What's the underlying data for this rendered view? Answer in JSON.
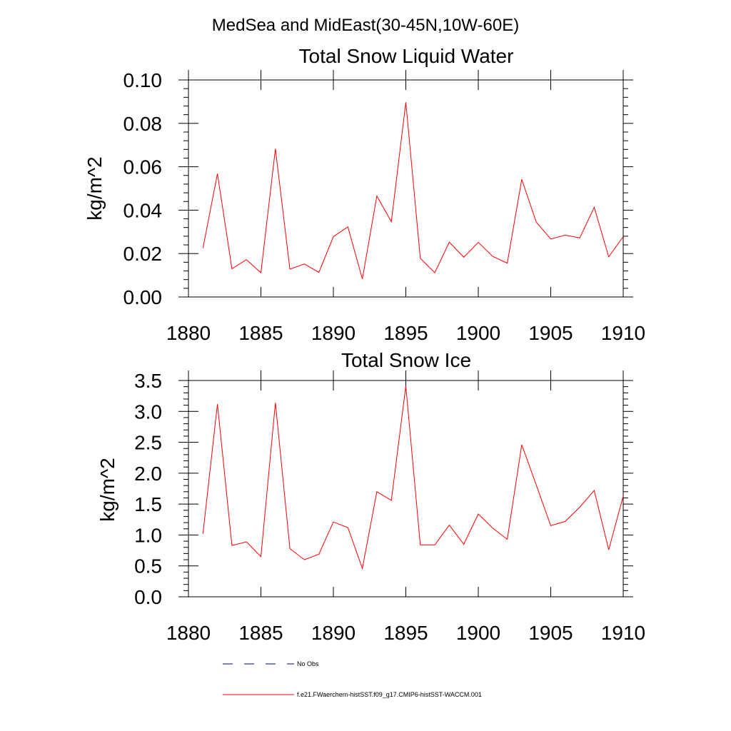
{
  "figure": {
    "suptitle": "MedSea and MidEast(30-45N,10W-60E)"
  },
  "legend": {
    "items": [
      {
        "label": "No Obs",
        "color": "#00008b",
        "style": "dashed"
      },
      {
        "label": "f.e21.FWaerchem-histSST.f09_g17.CMIP6-histSST-WACCM.001",
        "color": "#ff0000",
        "style": "solid"
      }
    ]
  },
  "chart_data": [
    {
      "type": "line",
      "title": "Total Snow Liquid Water",
      "xlabel": "",
      "ylabel": "kg/m^2",
      "xlim": [
        1880,
        1910
      ],
      "ylim": [
        0,
        0.1
      ],
      "xticks": [
        "1880",
        "1885",
        "1890",
        "1895",
        "1900",
        "1905",
        "1910"
      ],
      "yticks": [
        "0.00",
        "0.02",
        "0.04",
        "0.06",
        "0.08",
        "0.10"
      ],
      "grid": false,
      "series": [
        {
          "name": "f.e21.FWaerchem-histSST.f09_g17.CMIP6-histSST-WACCM.001",
          "color": "#ff0000",
          "x": [
            1881,
            1882,
            1883,
            1884,
            1885,
            1886,
            1887,
            1888,
            1889,
            1890,
            1891,
            1892,
            1893,
            1894,
            1895,
            1896,
            1897,
            1898,
            1899,
            1900,
            1901,
            1902,
            1903,
            1904,
            1905,
            1906,
            1907,
            1908,
            1909,
            1910
          ],
          "y": [
            0.0225,
            0.0568,
            0.013,
            0.0172,
            0.0112,
            0.0683,
            0.0128,
            0.0152,
            0.0113,
            0.0278,
            0.0323,
            0.0083,
            0.0465,
            0.0347,
            0.0897,
            0.0178,
            0.0112,
            0.0253,
            0.0183,
            0.0252,
            0.0187,
            0.0156,
            0.0542,
            0.0345,
            0.0267,
            0.0285,
            0.0272,
            0.0413,
            0.0185,
            0.0278
          ]
        }
      ]
    },
    {
      "type": "line",
      "title": "Total Snow Ice",
      "xlabel": "",
      "ylabel": "kg/m^2",
      "xlim": [
        1880,
        1910
      ],
      "ylim": [
        0,
        3.5
      ],
      "xticks": [
        "1880",
        "1885",
        "1890",
        "1895",
        "1900",
        "1905",
        "1910"
      ],
      "yticks": [
        "0.0",
        "0.5",
        "1.0",
        "1.5",
        "2.0",
        "2.5",
        "3.0",
        "3.5"
      ],
      "grid": false,
      "series": [
        {
          "name": "f.e21.FWaerchem-histSST.f09_g17.CMIP6-histSST-WACCM.001",
          "color": "#ff0000",
          "x": [
            1881,
            1882,
            1883,
            1884,
            1885,
            1886,
            1887,
            1888,
            1889,
            1890,
            1891,
            1892,
            1893,
            1894,
            1895,
            1896,
            1897,
            1898,
            1899,
            1900,
            1901,
            1902,
            1903,
            1904,
            1905,
            1906,
            1907,
            1908,
            1909,
            1910
          ],
          "y": [
            1.02,
            3.12,
            0.83,
            0.89,
            0.65,
            3.14,
            0.78,
            0.6,
            0.69,
            1.21,
            1.12,
            0.46,
            1.7,
            1.56,
            3.41,
            0.84,
            0.84,
            1.16,
            0.85,
            1.34,
            1.11,
            0.93,
            2.46,
            1.81,
            1.15,
            1.22,
            1.45,
            1.72,
            0.76,
            1.63
          ]
        }
      ]
    }
  ]
}
